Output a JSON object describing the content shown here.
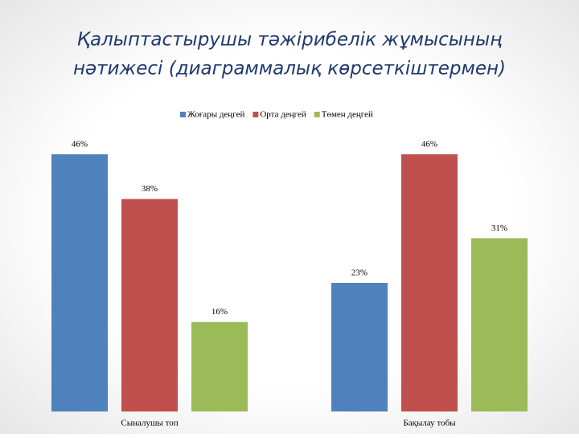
{
  "chart_data": {
    "type": "bar",
    "title": [
      "Қалыптастырушы тәжірибелік жұмысының",
      "нәтижесі (диаграммалық көрсеткіштермен)"
    ],
    "categories": [
      "Сыналушы топ",
      "Бақылау тобы"
    ],
    "series": [
      {
        "name": "Жоғары деңгей",
        "color": "#4f81bd",
        "values": [
          46,
          23
        ],
        "value_labels": [
          "46%",
          "23%"
        ]
      },
      {
        "name": "Орта деңгей",
        "color": "#c0504d",
        "values": [
          38,
          46
        ],
        "value_labels": [
          "38%",
          "46%"
        ]
      },
      {
        "name": "Төмен деңгей",
        "color": "#9bbb59",
        "values": [
          16,
          31
        ],
        "value_labels": [
          "16%",
          "31%"
        ]
      }
    ],
    "legend": "top"
  }
}
